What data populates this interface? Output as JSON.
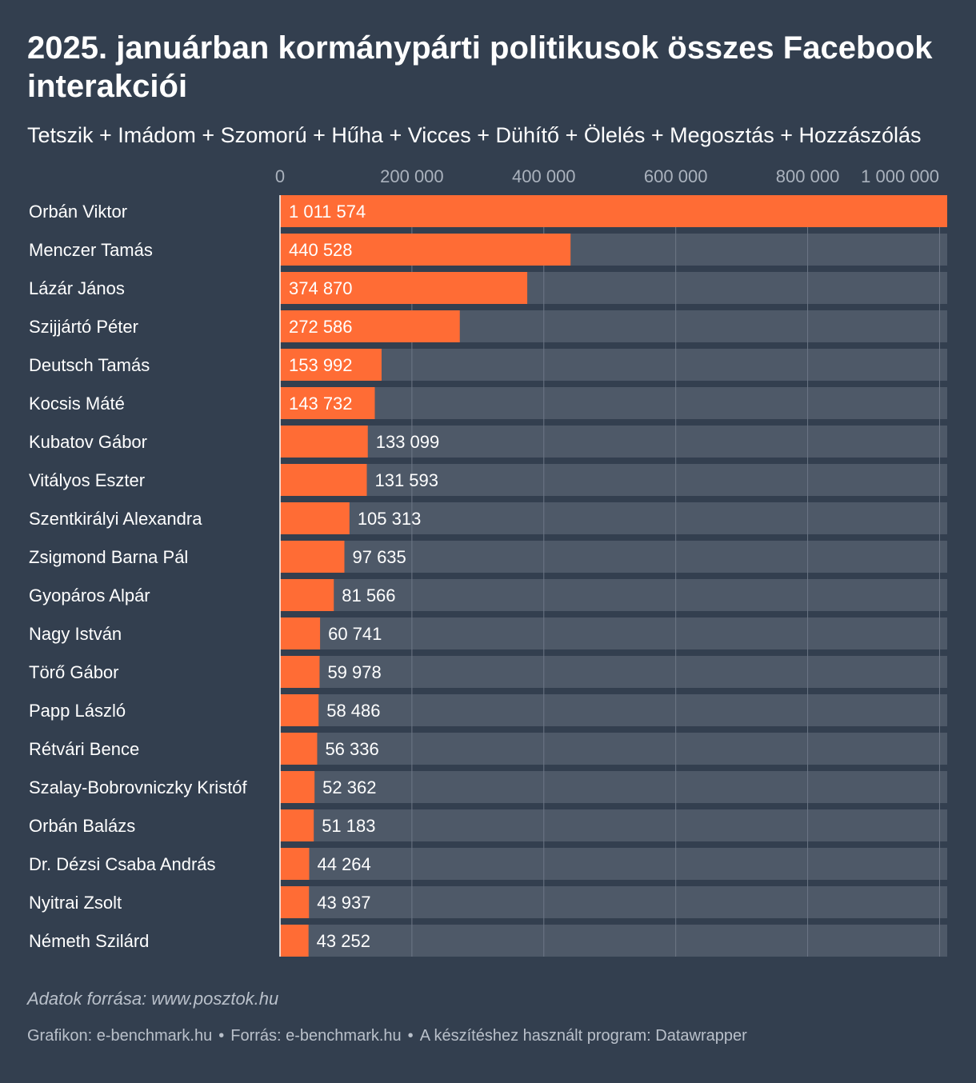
{
  "title": "2025. januárban kormánypárti politikusok összes Facebook interakciói",
  "subtitle": "Tetszik + Imádom + Szomorú + Hűha + Vicces + Dühítő + Ölelés + Megosztás + Hozzászólás",
  "notes": "Adatok forrása: www.posztok.hu",
  "footer": {
    "chart_by": "Grafikon: e-benchmark.hu",
    "source": "Forrás: e-benchmark.hu",
    "tool": "A készítéshez használt program: Datawrapper",
    "separator": "•"
  },
  "colors": {
    "background": "#333f4f",
    "bar": "#ff6c35",
    "track": "#4e5968",
    "gridline": "#6d7786",
    "axis_text": "#aab2bd"
  },
  "chart_data": {
    "type": "bar",
    "orientation": "horizontal",
    "categories": [
      "Orbán Viktor",
      "Menczer Tamás",
      "Lázár János",
      "Szijjártó Péter",
      "Deutsch Tamás",
      "Kocsis Máté",
      "Kubatov Gábor",
      "Vitályos Eszter",
      "Szentkirályi Alexandra",
      "Zsigmond Barna Pál",
      "Gyopáros Alpár",
      "Nagy István",
      "Törő Gábor",
      "Papp László",
      "Rétvári Bence",
      "Szalay-Bobrovniczky Kristóf",
      "Orbán Balázs",
      "Dr. Dézsi Csaba András",
      "Nyitrai Zsolt",
      "Németh Szilárd"
    ],
    "values": [
      1011574,
      440528,
      374870,
      272586,
      153992,
      143732,
      133099,
      131593,
      105313,
      97635,
      81566,
      60741,
      59978,
      58486,
      56336,
      52362,
      51183,
      44264,
      43937,
      43252
    ],
    "value_labels": [
      "1 011 574",
      "440 528",
      "374 870",
      "272 586",
      "153 992",
      "143 732",
      "133 099",
      "131 593",
      "105 313",
      "97 635",
      "81 566",
      "60 741",
      "59 978",
      "58 486",
      "56 336",
      "52 362",
      "51 183",
      "44 264",
      "43 937",
      "43 252"
    ],
    "x_ticks": [
      0,
      200000,
      400000,
      600000,
      800000,
      1000000
    ],
    "x_tick_labels": [
      "0",
      "200 000",
      "400 000",
      "600 000",
      "800 000",
      "1 000 000"
    ],
    "xlim": [
      0,
      1011574
    ],
    "grid": true,
    "axis_position": "top"
  }
}
